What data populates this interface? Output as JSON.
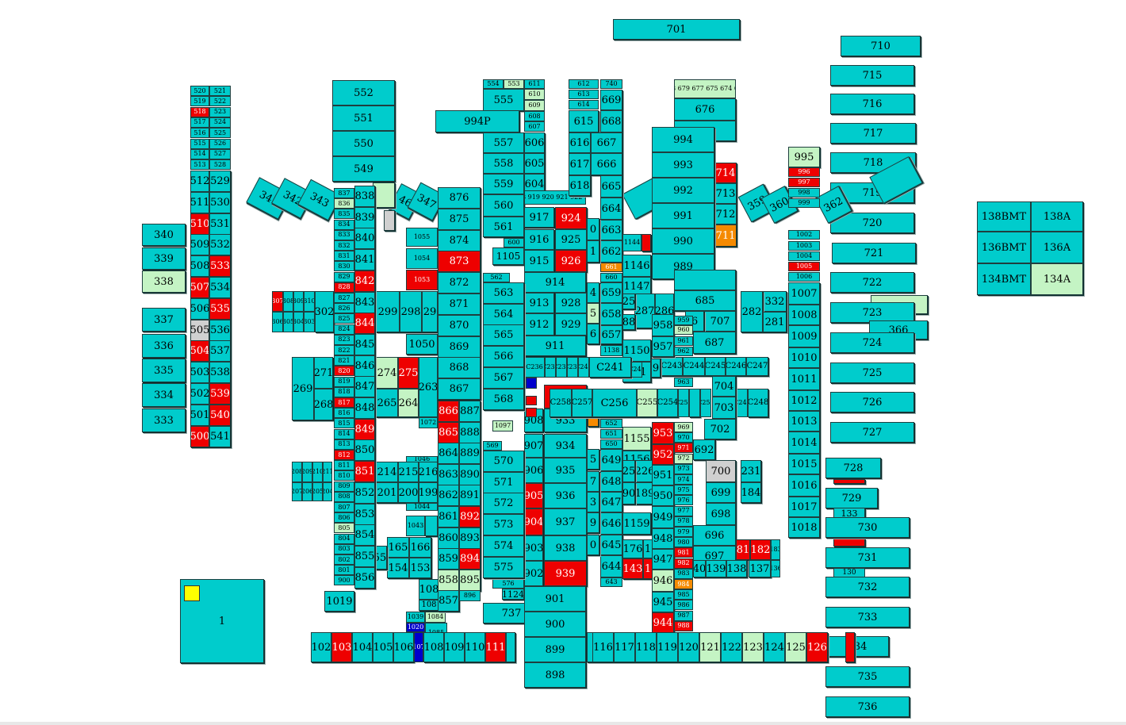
{
  "colors": {
    "available": "#00cccc",
    "sold": "#ee0000",
    "reserved": "#c4f4c4",
    "hold": "#f58a00",
    "blocked": "#d0d0d0",
    "special": "#0000cc",
    "marker": "#ffff00"
  },
  "labels": {
    "b701": "701",
    "b710": "710",
    "b715": "715",
    "b716": "716",
    "b717": "717",
    "b718": "718",
    "b719": "719",
    "b720": "720",
    "b721": "721",
    "b722": "722",
    "b723": "723",
    "b724": "724",
    "b725": "725",
    "b726": "726",
    "b727": "727",
    "b728": "728",
    "b729": "729",
    "b730": "730",
    "b731": "731",
    "b732": "732",
    "b733": "733",
    "b734": "734",
    "b735": "735",
    "b736": "736",
    "b366": "366",
    "b133": "133",
    "b130": "130",
    "b138bmt": "138BMT",
    "b138a": "138A",
    "b136bmt": "136BMT",
    "b136a": "136A",
    "b134bmt": "134BMT",
    "b134a": "134A",
    "b340": "340",
    "b339": "339",
    "b338": "338",
    "b337": "337",
    "b336": "336",
    "b335": "335",
    "b334": "334",
    "b333": "333",
    "b1": "1",
    "b520": "520",
    "b521": "521",
    "b519": "519",
    "b522": "522",
    "b518": "518",
    "b523": "523",
    "b517": "517",
    "b524": "524",
    "b516": "516",
    "b525": "525",
    "b515": "515",
    "b526": "526",
    "b514": "514",
    "b527": "527",
    "b513": "513",
    "b528": "528",
    "b512": "512",
    "b529": "529",
    "b511": "511",
    "b530": "530",
    "b510": "510",
    "b531": "531",
    "b509": "509",
    "b532": "532",
    "b508": "508",
    "b533": "533",
    "b507": "507",
    "b534": "534",
    "b506": "506",
    "b535": "535",
    "b505": "505",
    "b536": "536",
    "b504": "504",
    "b537": "537",
    "b503": "503",
    "b538": "538",
    "b502": "502",
    "b539": "539",
    "b501": "501",
    "b540": "540",
    "b500": "500",
    "b541": "541",
    "b341": "341",
    "b342": "342",
    "b343": "343",
    "b346": "46",
    "b347": "347",
    "b359": "359",
    "b360": "360",
    "b362": "362",
    "b552": "552",
    "b551": "551",
    "b550": "550",
    "b549": "549",
    "b838": "838",
    "b839": "839",
    "b840": "840",
    "b841": "841",
    "b842": "842",
    "b843": "843",
    "b844": "844",
    "b845": "845",
    "b846": "846",
    "b847": "847",
    "b848": "848",
    "b849": "849",
    "b850": "850",
    "b851": "851",
    "b852": "852",
    "b853": "853",
    "b854": "854",
    "b855": "855",
    "b856": "856",
    "b1019": "1019",
    "b837": "837",
    "b836": "836",
    "b835": "835",
    "b834": "834",
    "b833": "833",
    "b832": "832",
    "b831": "831",
    "b830": "830",
    "b829": "829",
    "b828": "828",
    "b827": "827",
    "b826": "826",
    "b825": "825",
    "b824": "824",
    "b823": "823",
    "b822": "822",
    "b821": "821",
    "b820": "820",
    "b819": "819",
    "b818": "818",
    "b817": "817",
    "b816": "816",
    "b815": "815",
    "b814": "814",
    "b813": "813",
    "b812": "812",
    "b811": "811",
    "b810": "810",
    "b809": "809",
    "b808": "808",
    "b807": "807",
    "b806": "806",
    "b805": "805",
    "b804": "804",
    "b803": "803",
    "b802": "802",
    "b801": "801",
    "b900s": "900",
    "b302": "302",
    "b299": "299",
    "b298": "298",
    "b297": "29",
    "b271": "271",
    "b269": "269",
    "b268": "268",
    "b274": "274",
    "b275": "275",
    "b265": "265",
    "b264": "264",
    "b263": "263",
    "b1050": "1050",
    "b1055": "1055",
    "b1054": "1054",
    "b1053": "1053",
    "b1072": "1072",
    "b214": "214",
    "b215": "215",
    "b216": "216",
    "b201": "201",
    "b200": "200",
    "b199": "199",
    "b165": "165",
    "b166": "166",
    "b154": "154",
    "b153": "153",
    "b1043": "1043",
    "b1044": "1044",
    "b1046": "1046",
    "b876": "876",
    "b875": "875",
    "b874": "874",
    "b873": "873",
    "b872": "872",
    "b871": "871",
    "b870": "870",
    "b869": "869",
    "b868": "868",
    "b867": "867",
    "b866": "866",
    "b865": "865",
    "b864": "864",
    "b863": "863",
    "b862": "862",
    "b861": "861",
    "b860": "860",
    "b859": "859",
    "b858": "858",
    "b857": "857",
    "b887": "887",
    "b888": "888",
    "b889": "889",
    "b890": "890",
    "b891": "891",
    "b892": "892",
    "b893": "893",
    "b894": "894",
    "b895": "895",
    "b896": "896",
    "b108a": "108",
    "b108b": "108",
    "b1039": "1039",
    "b1084": "1084",
    "b1085": "1085",
    "b554": "554",
    "b553": "553",
    "b611": "611",
    "b610": "610",
    "b609": "609",
    "b608": "608",
    "b607": "607",
    "b555": "555",
    "b994p": "994P",
    "b557": "557",
    "b606": "606",
    "b558": "558",
    "b605": "605",
    "b559": "559",
    "b604": "604",
    "b560": "560",
    "b561": "561",
    "b600": "600",
    "b1105": "1105",
    "b562": "562",
    "b563": "563",
    "b564": "564",
    "b565": "565",
    "b566": "566",
    "b567": "567",
    "b568": "568",
    "b569": "569",
    "b570": "570",
    "b571": "571",
    "b572": "572",
    "b573": "573",
    "b574": "574",
    "b575": "575",
    "b576": "576",
    "b1124": "1124",
    "b737": "737",
    "b1097": "1097",
    "b917": "917",
    "b924": "924",
    "b916": "916",
    "b925": "925",
    "b915": "915",
    "b926": "926",
    "b914": "914",
    "b913": "913",
    "b928": "928",
    "b912": "912",
    "b929": "929",
    "b911": "911",
    "b907": "907",
    "b934": "934",
    "b906": "906",
    "b935": "935",
    "b905": "905",
    "b936": "936",
    "b904": "904",
    "b937": "937",
    "b903": "903",
    "b938": "938",
    "b902": "902",
    "b939": "939",
    "b901": "901",
    "b900": "900",
    "b899": "899",
    "b898": "898",
    "b908": "908",
    "b933": "933",
    "b612": "612",
    "b740": "740",
    "b613": "613",
    "b669": "669",
    "b614": "614",
    "b615": "615",
    "b668": "668",
    "b616": "616",
    "b667": "667",
    "b617": "617",
    "b666": "666",
    "b618": "618",
    "b665": "665",
    "b664": "664",
    "b663": "663",
    "b662": "662",
    "b661": "661",
    "b660": "660",
    "b659": "659",
    "b658": "658",
    "b657": "657",
    "b1138": "1138",
    "b652": "652",
    "b651": "651",
    "b650": "650",
    "b649": "649",
    "b648": "648",
    "b647": "647",
    "b646": "646",
    "b645": "645",
    "b644": "644",
    "b643": "643",
    "b1144": "1144",
    "b1146": "1146",
    "b1147": "1147",
    "b1150": "1150",
    "b1151": "151",
    "b1155": "1155",
    "b1156": "1156",
    "b1159": "1159",
    "b287": "287",
    "b286": "286",
    "b226": "226",
    "b189": "189",
    "b176": "176",
    "b143": "143",
    "bC236": "C236",
    "bC241": "C241",
    "bC256": "C256",
    "bC258": "C258",
    "bC257": "C257",
    "bC255": "C255",
    "bC254": "C254",
    "bC243": "C243",
    "bC244": "C244",
    "bC245": "C245",
    "bC246": "C246",
    "bC247": "C247",
    "bC248": "C248",
    "b994": "994",
    "b993": "993",
    "b992": "992",
    "b991": "991",
    "b990": "990",
    "b989": "989",
    "b676": "676",
    "b714": "714",
    "b713": "713",
    "b712": "712",
    "b711": "711",
    "b685": "685",
    "b707": "707",
    "b687": "687",
    "b958": "958",
    "b957": "957",
    "b959": "959",
    "b960": "960",
    "b961": "961",
    "b962": "962",
    "b963": "963",
    "b704": "704",
    "b703": "703",
    "b702": "702",
    "b953": "953",
    "b952": "952",
    "b951": "951",
    "b950": "950",
    "b949": "949",
    "b948": "948",
    "b947": "947",
    "b946": "946",
    "b945": "945",
    "b944": "944",
    "b969": "969",
    "b970": "970",
    "b971": "971",
    "b972": "972",
    "b973": "973",
    "b974": "974",
    "b975": "975",
    "b976": "976",
    "b977": "977",
    "b978": "978",
    "b979": "979",
    "b980": "980",
    "b981": "981",
    "b982": "982",
    "b983": "983",
    "b984": "984",
    "b985": "985",
    "b986": "986",
    "b987": "987",
    "b988": "988",
    "b692": "692",
    "b700": "700",
    "b231": "231",
    "b699": "699",
    "b184": "184",
    "b698": "698",
    "b696": "696",
    "b697": "697",
    "b181": "81",
    "b182": "182",
    "b139": "139",
    "b138": "138",
    "b137": "137",
    "b332": "332",
    "b282": "282",
    "b281": "281",
    "b995": "995",
    "b996": "996",
    "b997": "997",
    "b998": "998",
    "b999": "999",
    "b1002": "1002",
    "b1003": "1003",
    "b1004": "1004",
    "b1005": "1005",
    "b1006": "1006",
    "b1007": "1007",
    "b1008": "1008",
    "b1009": "1009",
    "b1010": "1010",
    "b1011": "1011",
    "b1012": "1012",
    "b1013": "1013",
    "b1014": "1014",
    "b1015": "1015",
    "b1016": "1016",
    "b1017": "1017",
    "b1018": "1018",
    "b102": "102",
    "b103": "103",
    "b104": "104",
    "b105": "105",
    "b106": "106",
    "b107": "107",
    "b108": "108",
    "b109": "109",
    "b110": "110",
    "b111": "111",
    "b116": "116",
    "b117": "117",
    "b118": "118",
    "b119": "119",
    "b120": "120",
    "b121": "121",
    "b122": "122",
    "b123": "123",
    "b124": "124",
    "b125": "125",
    "b126": "126",
    "b678": "678",
    "b679": "679",
    "b677": "677",
    "b675": "675",
    "b674": "674",
    "b673": "673"
  }
}
